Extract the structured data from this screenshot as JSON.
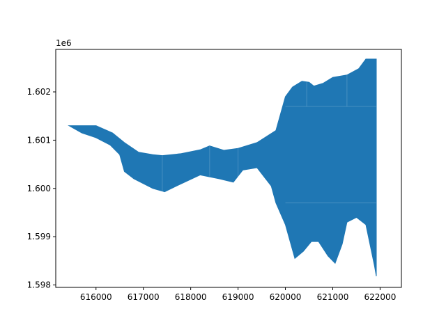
{
  "chart_data": {
    "type": "area",
    "title": "",
    "xlabel": "",
    "ylabel": "",
    "y_offset_label": "1e6",
    "xlim": [
      615150,
      622450
    ],
    "ylim": [
      1597950,
      1602880
    ],
    "grid": false,
    "legend": "none",
    "xticks": [
      {
        "value": 616000,
        "label": "616000"
      },
      {
        "value": 617000,
        "label": "617000"
      },
      {
        "value": 618000,
        "label": "618000"
      },
      {
        "value": 619000,
        "label": "619000"
      },
      {
        "value": 620000,
        "label": "620000"
      },
      {
        "value": 621000,
        "label": "621000"
      },
      {
        "value": 622000,
        "label": "622000"
      }
    ],
    "yticks": [
      {
        "value": 1598000,
        "label": "1.598"
      },
      {
        "value": 1599000,
        "label": "1.599"
      },
      {
        "value": 1600000,
        "label": "1.600"
      },
      {
        "value": 1601000,
        "label": "1.601"
      },
      {
        "value": 1602000,
        "label": "1.602"
      }
    ],
    "fill_color": "#1f77b4",
    "region": {
      "name": "polygon",
      "x": [
        615430,
        616000,
        616350,
        616600,
        616900,
        617200,
        617400,
        617800,
        618200,
        618400,
        618700,
        619000,
        619400,
        619800,
        620000,
        620150,
        620350,
        620500,
        620600,
        620800,
        621000,
        621300,
        621550,
        621700,
        621920,
        621920,
        621880,
        621800,
        621700,
        621500,
        621300,
        621200,
        621050,
        620900,
        620700,
        620550,
        620380,
        620200,
        620000,
        619800,
        619700,
        619400,
        619100,
        618900,
        618600,
        618200,
        617700,
        617450,
        617200,
        616800,
        616600,
        616500,
        616300,
        616000,
        615700,
        615430
      ],
      "y": [
        1601300,
        1601300,
        1601150,
        1600950,
        1600750,
        1600700,
        1600680,
        1600720,
        1600800,
        1600880,
        1600790,
        1600830,
        1600950,
        1601200,
        1601900,
        1602100,
        1602220,
        1602200,
        1602120,
        1602180,
        1602300,
        1602350,
        1602480,
        1602680,
        1602680,
        1598180,
        1598400,
        1598780,
        1599250,
        1599400,
        1599300,
        1598850,
        1598450,
        1598600,
        1598900,
        1598900,
        1598700,
        1598550,
        1599250,
        1599700,
        1600050,
        1600430,
        1600380,
        1600130,
        1600200,
        1600280,
        1600050,
        1599930,
        1600000,
        1600200,
        1600350,
        1600700,
        1600900,
        1601050,
        1601150,
        1601300
      ]
    },
    "inner_lines": [
      {
        "x": [
          617400,
          617400
        ],
        "y": [
          1599930,
          1600680
        ]
      },
      {
        "x": [
          618400,
          618400
        ],
        "y": [
          1600250,
          1600880
        ]
      },
      {
        "x": [
          619000,
          619000
        ],
        "y": [
          1600100,
          1600830
        ]
      },
      {
        "x": [
          620000,
          621920
        ],
        "y": [
          1599700,
          1599700
        ]
      },
      {
        "x": [
          620000,
          621920
        ],
        "y": [
          1601700,
          1601700
        ]
      },
      {
        "x": [
          620450,
          620450
        ],
        "y": [
          1601700,
          1602200
        ]
      },
      {
        "x": [
          621300,
          621300
        ],
        "y": [
          1601700,
          1602350
        ]
      }
    ]
  }
}
